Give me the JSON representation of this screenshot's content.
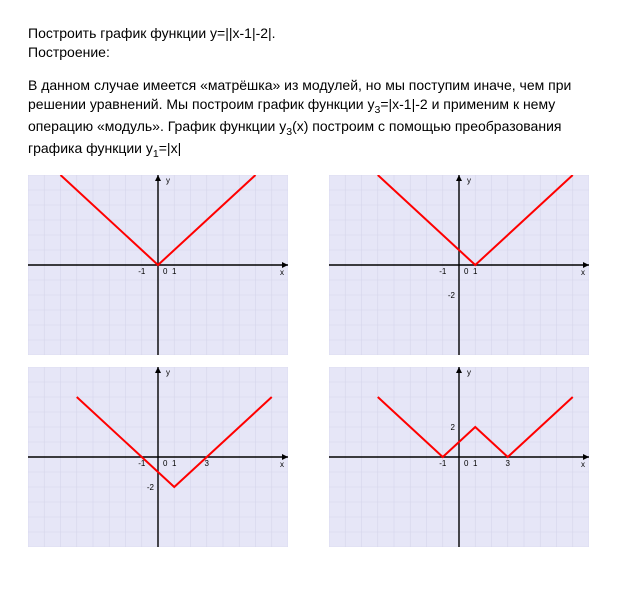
{
  "title": "Построить график функции y=||x-1|-2|.",
  "subtitle": "Построение:",
  "paragraph_start": "В данном случае имеется «матрёшка» из модулей, но мы поступим иначе, чем при решении уравнений. Мы построим график функции y",
  "sub3": "3",
  "paragraph_mid": "=|x-1|-2 и применим к нему операцию «модуль». График функции y",
  "paragraph_mid2": "(x) построим с помощью преобразования графика функции y",
  "sub1": "1",
  "paragraph_end": "=|x|",
  "plot": {
    "cell_bg": "#e6e6f7",
    "major_grid": "#c5c5e0",
    "minor_grid": "#d6d6eb",
    "axis_color": "#000000",
    "line_color": "#ff0000",
    "line_width": 2,
    "label_font": "8",
    "xmin": -8,
    "xmax": 8,
    "ymin": -6,
    "ymax": 6,
    "x_label": "x",
    "y_label": "y",
    "tick_zero": "0",
    "tick_one": "1",
    "tick_neg_one": "-1",
    "charts": [
      {
        "points": [
          [
            -6,
            6
          ],
          [
            0,
            0
          ],
          [
            6,
            6
          ]
        ],
        "marks": []
      },
      {
        "points": [
          [
            -5,
            6
          ],
          [
            1,
            0
          ],
          [
            7,
            6
          ]
        ],
        "marks": [
          [
            0,
            -2,
            "-2"
          ]
        ]
      },
      {
        "points": [
          [
            -5,
            4
          ],
          [
            1,
            -2
          ],
          [
            7,
            4
          ]
        ],
        "marks": [
          [
            3,
            0,
            "3"
          ],
          [
            0,
            -2,
            "-2"
          ]
        ]
      },
      {
        "points": [
          [
            -5,
            4
          ],
          [
            -1,
            0
          ],
          [
            1,
            2
          ],
          [
            3,
            0
          ],
          [
            7,
            4
          ]
        ],
        "marks": [
          [
            0,
            2,
            "2"
          ],
          [
            3,
            0,
            "3"
          ]
        ]
      }
    ]
  }
}
